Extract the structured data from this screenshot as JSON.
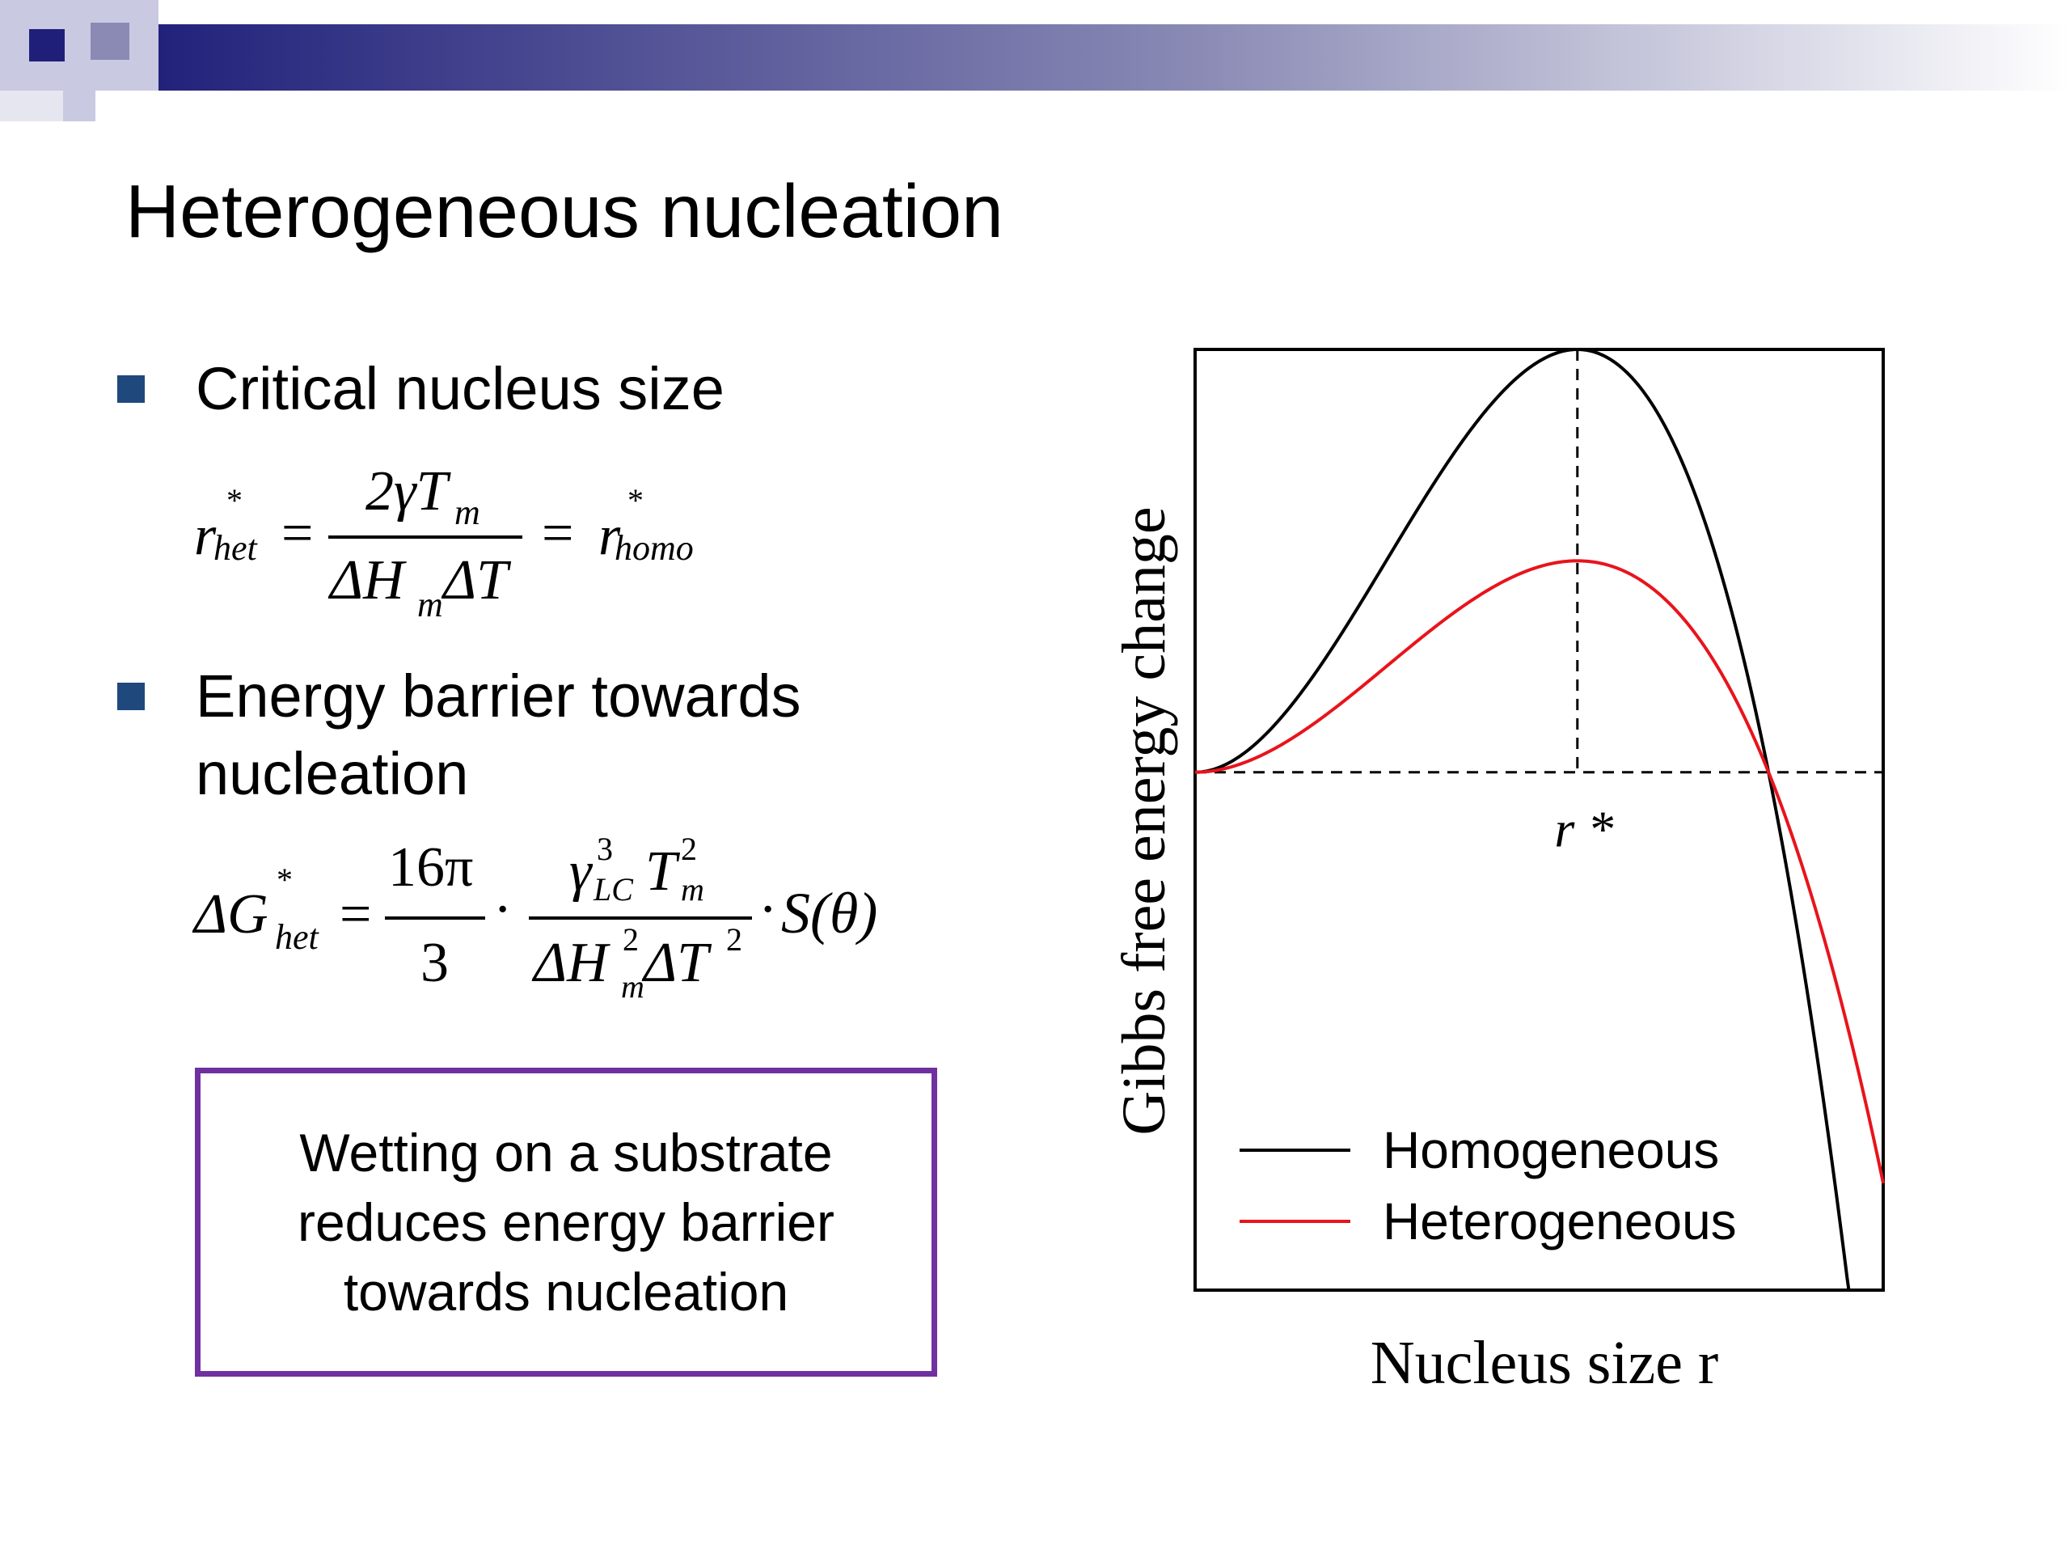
{
  "slide": {
    "title": "Heterogeneous nucleation",
    "bullets": [
      {
        "text_lines": [
          "Critical nucleus size"
        ]
      },
      {
        "text_lines": [
          "Energy barrier towards",
          "nucleation"
        ]
      }
    ],
    "callout_lines": [
      "Wetting on a substrate",
      "reduces energy barrier",
      "towards nucleation"
    ]
  },
  "equations": {
    "critical_radius": {
      "lhs_base": "r",
      "lhs_sup": "*",
      "lhs_sub": "het",
      "num": "2γT",
      "num_sub": "m",
      "den_a": "ΔH",
      "den_sub": "m",
      "den_b": "ΔT",
      "rhs_base": "r",
      "rhs_sup": "*",
      "rhs_sub": "homo",
      "eq": "="
    },
    "energy_barrier": {
      "lhs": "ΔG",
      "lhs_sup": "*",
      "lhs_sub": "het",
      "eq": "=",
      "frac1_num": "16π",
      "frac1_den": "3",
      "dot": "·",
      "frac2_num_a": "γ",
      "frac2_num_a_sup": "3",
      "frac2_num_a_sub": "LC",
      "frac2_num_b": "T",
      "frac2_num_b_sup": "2",
      "frac2_num_b_sub": "m",
      "frac2_den_a": "ΔH",
      "frac2_den_a_sup": "2",
      "frac2_den_a_sub": "m",
      "frac2_den_b": "ΔT",
      "frac2_den_b_sup": "2",
      "tail": "S(θ)"
    }
  },
  "colors": {
    "header_dark": "#1F1F7A",
    "bullet": "#1F487C",
    "callout_border": "#7030A0",
    "homogeneous": "#000000",
    "heterogeneous": "#E8141C"
  },
  "chart_data": {
    "type": "line",
    "xlabel": "Nucleus size r",
    "ylabel": "Gibbs free energy change",
    "critical_label": "r *",
    "critical_x": 1.0,
    "xlim": [
      0,
      1.8
    ],
    "ylim": [
      -1.225,
      1.0
    ],
    "grid": false,
    "legend": "bottom-right",
    "series": [
      {
        "name": "Homogeneous",
        "color": "#000000",
        "formula": "3x^2-2x^3",
        "peak": 1.0
      },
      {
        "name": "Heterogeneous",
        "color": "#E8141C",
        "formula": "0.5*(3x^2-2x^3)",
        "peak": 0.5
      }
    ]
  }
}
